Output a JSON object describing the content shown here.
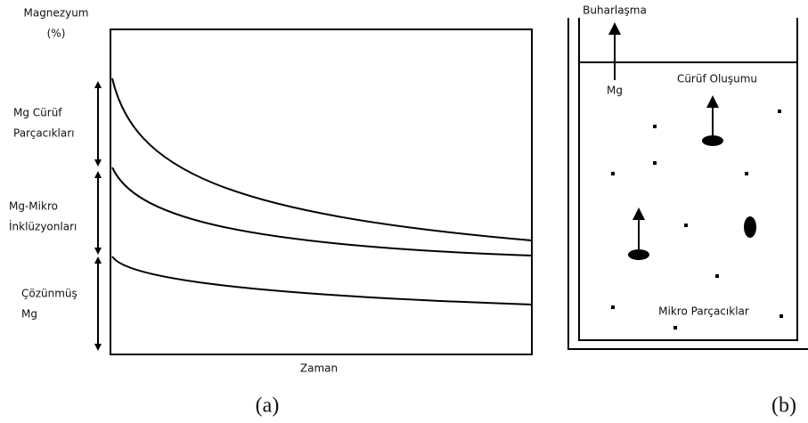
{
  "panel_a": {
    "y_label": [
      "Magnezyum",
      "(%)"
    ],
    "regions": [
      [
        "Mg Cürüf",
        "Parçacıkları"
      ],
      [
        "Mg-Mikro",
        "İnklüzyonları"
      ],
      [
        "Çözünmüş",
        "Mg"
      ]
    ],
    "x_label": "Zaman",
    "caption": "(a)"
  },
  "panel_b": {
    "evaporation": "Buharlaşma",
    "evaporating_species": "Mg",
    "slag_formation": "Cürüf Oluşumu",
    "micro_particles": "Mikro Parçacıklar",
    "caption": "(b)"
  }
}
